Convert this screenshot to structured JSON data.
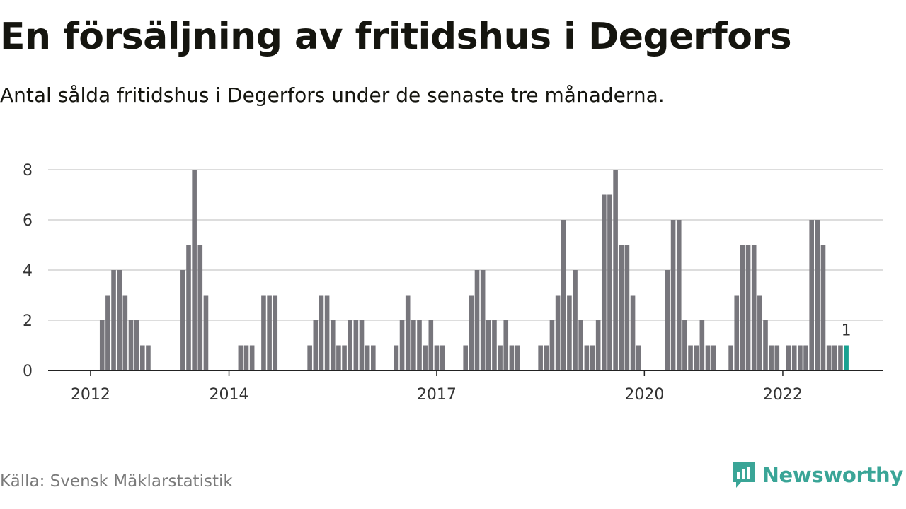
{
  "title": "En försäljning av fritidshus i Degerfors",
  "subtitle": "Antal sålda fritidshus i Degerfors under de senaste tre månaderna.",
  "source": "Källa: Svensk Mäklarstatistik",
  "brand": "Newsworthy",
  "colors": {
    "bar": "#77767c",
    "highlight": "#18a191",
    "grid": "#dddddd",
    "axis": "#222222",
    "brand": "#3aa597"
  },
  "chart_data": {
    "type": "bar",
    "ylim": [
      0,
      8
    ],
    "yticks": [
      0,
      2,
      4,
      6,
      8
    ],
    "xticks": [
      {
        "label": "2012",
        "index": 7
      },
      {
        "label": "2014",
        "index": 31
      },
      {
        "label": "2017",
        "index": 67
      },
      {
        "label": "2020",
        "index": 103
      },
      {
        "label": "2022",
        "index": 127
      }
    ],
    "values": [
      0,
      0,
      0,
      0,
      0,
      0,
      0,
      0,
      0,
      2,
      3,
      4,
      4,
      3,
      2,
      2,
      1,
      1,
      0,
      0,
      0,
      0,
      0,
      4,
      5,
      8,
      5,
      3,
      0,
      0,
      0,
      0,
      0,
      1,
      1,
      1,
      0,
      3,
      3,
      3,
      0,
      0,
      0,
      0,
      0,
      1,
      2,
      3,
      3,
      2,
      1,
      1,
      2,
      2,
      2,
      1,
      1,
      0,
      0,
      0,
      1,
      2,
      3,
      2,
      2,
      1,
      2,
      1,
      1,
      0,
      0,
      0,
      1,
      3,
      4,
      4,
      2,
      2,
      1,
      2,
      1,
      1,
      0,
      0,
      0,
      1,
      1,
      2,
      3,
      6,
      3,
      4,
      2,
      1,
      1,
      2,
      7,
      7,
      8,
      5,
      5,
      3,
      1,
      0,
      0,
      0,
      0,
      4,
      6,
      6,
      2,
      1,
      1,
      2,
      1,
      1,
      0,
      0,
      1,
      3,
      5,
      5,
      5,
      3,
      2,
      1,
      1,
      0,
      1,
      1,
      1,
      1,
      6,
      6,
      5,
      1,
      1,
      1,
      1
    ],
    "grid": true,
    "last_label": "1"
  }
}
